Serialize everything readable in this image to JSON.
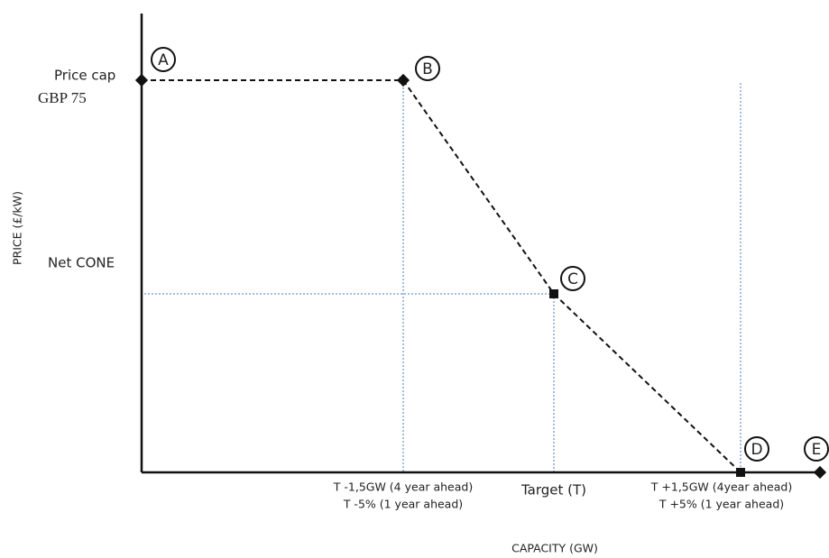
{
  "axes": {
    "y_label": "PRICE (£/kW)",
    "x_label": "CAPACITY (GW)"
  },
  "y_labels": {
    "price_cap": "Price cap",
    "price_cap_value": "GBP 75",
    "net_cone": "Net CONE"
  },
  "x_labels": {
    "lower": [
      "T -1,5GW (4 year ahead)",
      "T -5% (1 year ahead)"
    ],
    "target": "Target (T)",
    "upper": [
      "T +1,5GW (4year ahead)",
      "T +5% (1 year ahead)"
    ]
  },
  "points": [
    "A",
    "B",
    "C",
    "D",
    "E"
  ]
}
